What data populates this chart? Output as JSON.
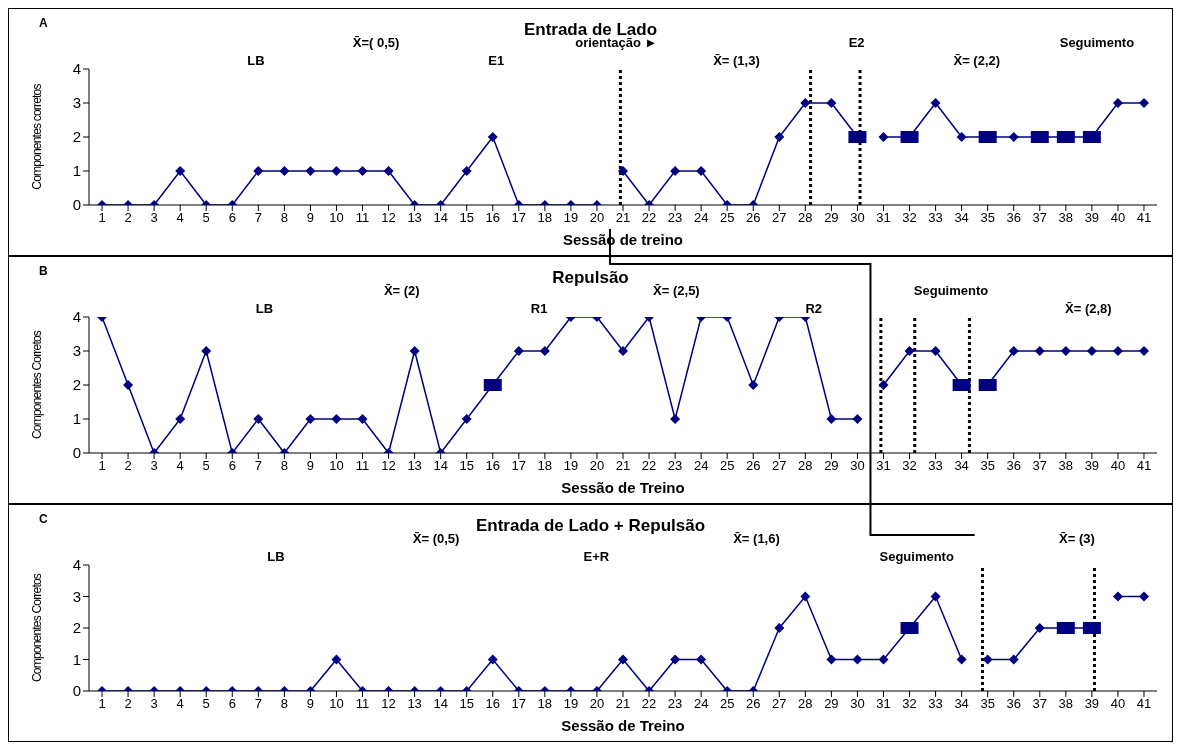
{
  "chart_data": [
    {
      "type": "line",
      "title": "Entrada de Lado",
      "xlabel": "Sessão de treino",
      "ylabel": "Componentes corretos",
      "xlim": [
        0.5,
        41.5
      ],
      "xticks": [
        1,
        2,
        3,
        4,
        5,
        6,
        7,
        8,
        9,
        10,
        11,
        12,
        13,
        14,
        15,
        16,
        17,
        18,
        19,
        20,
        21,
        22,
        23,
        24,
        25,
        26,
        27,
        28,
        29,
        30,
        31,
        32,
        33,
        34,
        35,
        36,
        37,
        38,
        39,
        40,
        41
      ],
      "ylim": [
        0,
        4
      ],
      "yticks": [
        0,
        1,
        2,
        3,
        4
      ],
      "grid": false,
      "marker": "diamond",
      "line_style": "solid",
      "series": [
        {
          "color": "#000080",
          "x": [
            1,
            2,
            3,
            4,
            5,
            6,
            7,
            8,
            9,
            10,
            11,
            12,
            13,
            14,
            15,
            16,
            17,
            18,
            19,
            20
          ],
          "values": [
            0,
            0,
            0,
            1,
            0,
            0,
            1,
            1,
            1,
            1,
            1,
            1,
            0,
            0,
            1,
            2,
            0,
            0,
            0,
            0
          ]
        },
        {
          "color": "#000080",
          "x": [
            21,
            22,
            23,
            24,
            25,
            26,
            27,
            28,
            29,
            30
          ],
          "values": [
            1,
            0,
            1,
            1,
            0,
            0,
            2,
            3,
            3,
            2
          ]
        },
        {
          "color": "#000080",
          "x": [
            31,
            32,
            33,
            34,
            35,
            36,
            37,
            38,
            39,
            40,
            41
          ],
          "values": [
            2,
            2,
            3,
            2,
            2,
            2,
            2,
            2,
            2,
            3,
            3
          ]
        },
        {
          "type": "scatter",
          "marker": "square",
          "color": "#000080",
          "x": [
            30,
            32,
            35,
            37,
            38,
            39
          ],
          "values": [
            2,
            2,
            2,
            2,
            2,
            2
          ]
        }
      ],
      "ref_lines": [
        {
          "axis": "x",
          "value": 20.9,
          "line_style": "dotted",
          "color": "#000000"
        },
        {
          "axis": "x",
          "value": 28.2,
          "line_style": "dotted",
          "color": "#000000"
        },
        {
          "axis": "x",
          "value": 30.1,
          "line_style": "dotted",
          "color": "#000000"
        }
      ],
      "annotations": [
        "A",
        "LB",
        "X̄=( 0,5)",
        "E1",
        "orientação ►",
        "X̄= (1,3)",
        "E2",
        "X̄= (2,2)",
        "Seguimento"
      ]
    },
    {
      "type": "line",
      "title": "Repulsão",
      "xlabel": "Sessão de Treino",
      "ylabel": "Componentes Corretos",
      "xlim": [
        0.5,
        41.5
      ],
      "xticks": [
        1,
        2,
        3,
        4,
        5,
        6,
        7,
        8,
        9,
        10,
        11,
        12,
        13,
        14,
        15,
        16,
        17,
        18,
        19,
        20,
        21,
        22,
        23,
        24,
        25,
        26,
        27,
        28,
        29,
        30,
        31,
        32,
        33,
        34,
        35,
        36,
        37,
        38,
        39,
        40,
        41
      ],
      "ylim": [
        0,
        4
      ],
      "yticks": [
        0,
        1,
        2,
        3,
        4
      ],
      "grid": false,
      "marker": "diamond",
      "line_style": "solid",
      "series": [
        {
          "color": "#000080",
          "x": [
            1,
            2,
            3,
            4,
            5,
            6,
            7,
            8,
            9,
            10,
            11,
            12,
            13,
            14,
            15,
            16,
            17,
            18,
            19,
            20,
            21,
            22,
            23,
            24,
            25,
            26,
            27,
            28,
            29,
            30
          ],
          "values": [
            4,
            2,
            0,
            1,
            3,
            0,
            1,
            0,
            1,
            1,
            1,
            0,
            3,
            0,
            1,
            2,
            3,
            3,
            4,
            4,
            3,
            4,
            1,
            4,
            4,
            2,
            4,
            4,
            1,
            1
          ]
        },
        {
          "color": "#000080",
          "x": [
            31,
            32,
            33,
            34
          ],
          "values": [
            2,
            3,
            3,
            2
          ]
        },
        {
          "color": "#000080",
          "x": [
            35,
            36,
            37,
            38,
            39,
            40,
            41
          ],
          "values": [
            2,
            3,
            3,
            3,
            3,
            3,
            3
          ]
        },
        {
          "type": "scatter",
          "marker": "square",
          "color": "#000080",
          "x": [
            16,
            34,
            35
          ],
          "values": [
            2,
            2,
            2
          ]
        }
      ],
      "ref_lines": [
        {
          "axis": "x",
          "value": 30.9,
          "line_style": "dotted",
          "color": "#000000"
        },
        {
          "axis": "x",
          "value": 32.2,
          "line_style": "dotted",
          "color": "#000000"
        },
        {
          "axis": "x",
          "value": 34.3,
          "line_style": "dotted",
          "color": "#000000"
        }
      ],
      "annotations": [
        "B",
        "LB",
        "X̄= (2)",
        "R1",
        "X̄= (2,5)",
        "R2",
        "Seguimento",
        "X̄= (2,8)"
      ]
    },
    {
      "type": "line",
      "title": "Entrada de Lado + Repulsão",
      "xlabel": "Sessão de Treino",
      "ylabel": "Componentes Corretos",
      "xlim": [
        0.5,
        41.5
      ],
      "xticks": [
        1,
        2,
        3,
        4,
        5,
        6,
        7,
        8,
        9,
        10,
        11,
        12,
        13,
        14,
        15,
        16,
        17,
        18,
        19,
        20,
        21,
        22,
        23,
        24,
        25,
        26,
        27,
        28,
        29,
        30,
        31,
        32,
        33,
        34,
        35,
        36,
        37,
        38,
        39,
        40,
        41
      ],
      "ylim": [
        0,
        4
      ],
      "yticks": [
        0,
        1,
        2,
        3,
        4
      ],
      "grid": false,
      "marker": "diamond",
      "line_style": "solid",
      "series": [
        {
          "color": "#000080",
          "x": [
            1,
            2,
            3,
            4,
            5,
            6,
            7,
            8,
            9,
            10,
            11,
            12,
            13,
            14,
            15,
            16,
            17,
            18,
            19,
            20,
            21,
            22,
            23,
            24,
            25,
            26,
            27,
            28,
            29,
            30,
            31,
            32,
            33,
            34
          ],
          "values": [
            0,
            0,
            0,
            0,
            0,
            0,
            0,
            0,
            0,
            1,
            0,
            0,
            0,
            0,
            0,
            1,
            0,
            0,
            0,
            0,
            1,
            0,
            1,
            1,
            0,
            0,
            2,
            3,
            1,
            1,
            1,
            2,
            3,
            1
          ]
        },
        {
          "color": "#000080",
          "x": [
            35,
            36,
            37,
            38,
            39
          ],
          "values": [
            1,
            1,
            2,
            2,
            2
          ]
        },
        {
          "color": "#000080",
          "x": [
            40,
            41
          ],
          "values": [
            3,
            3
          ]
        },
        {
          "type": "scatter",
          "marker": "square",
          "color": "#000080",
          "x": [
            32,
            38,
            39
          ],
          "values": [
            2,
            2,
            2
          ]
        }
      ],
      "ref_lines": [
        {
          "axis": "x",
          "value": 34.8,
          "line_style": "dotted",
          "color": "#000000"
        },
        {
          "axis": "x",
          "value": 39.1,
          "line_style": "dotted",
          "color": "#000000"
        }
      ],
      "annotations": [
        "C",
        "LB",
        "X̄= (0,5)",
        "E+R",
        "X̄= (1,6)",
        "Seguimento",
        "X̄= (3)"
      ]
    }
  ]
}
